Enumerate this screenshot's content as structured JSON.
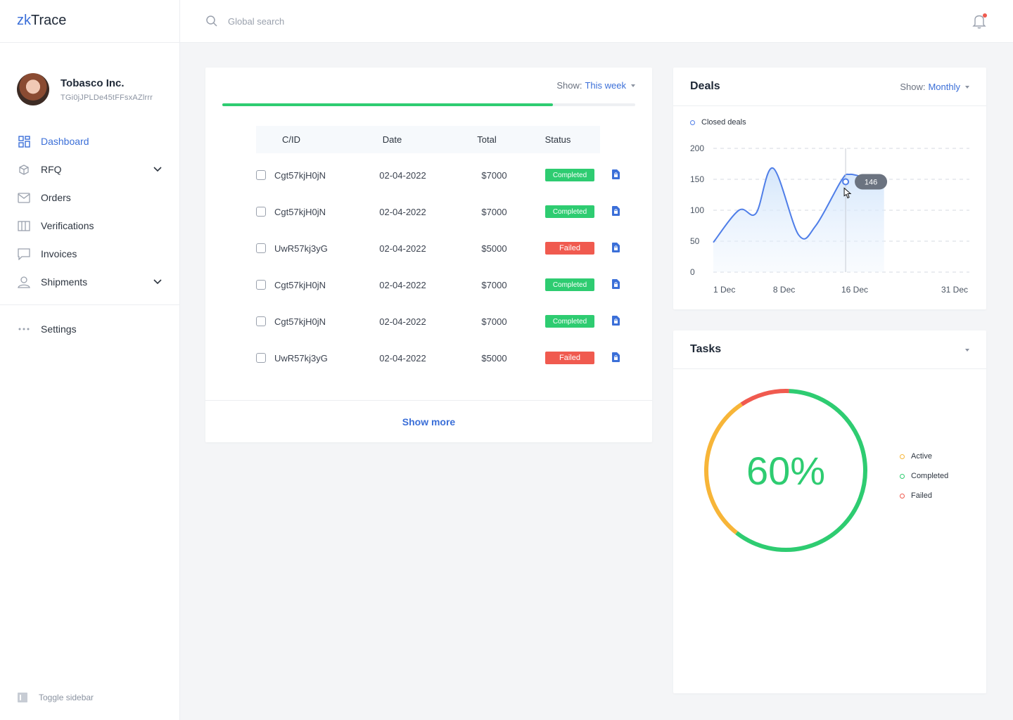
{
  "brand": {
    "prefix": "zk",
    "suffix": "Trace"
  },
  "profile": {
    "company": "Tobasco Inc.",
    "wallet": "TGi0jJPLDe45tFFsxAZlrrr"
  },
  "nav": {
    "items": [
      {
        "label": "Dashboard",
        "icon": "grid-icon",
        "active": true
      },
      {
        "label": "RFQ",
        "icon": "box-icon",
        "expandable": true
      },
      {
        "label": "Orders",
        "icon": "mail-icon"
      },
      {
        "label": "Verifications",
        "icon": "columns-icon"
      },
      {
        "label": "Invoices",
        "icon": "chat-icon"
      },
      {
        "label": "Shipments",
        "icon": "user-icon",
        "expandable": true
      }
    ],
    "settings": "Settings",
    "toggle": "Toggle sidebar"
  },
  "search": {
    "placeholder": "Global search"
  },
  "orders": {
    "filter_label": "Show:",
    "filter_value": "This week",
    "progress": 0.8,
    "columns": [
      "C/ID",
      "Date",
      "Total",
      "Status"
    ],
    "rows": [
      {
        "id": "Cgt57kjH0jN",
        "date": "02-04-2022",
        "total": "$7000",
        "status": "Completed"
      },
      {
        "id": "Cgt57kjH0jN",
        "date": "02-04-2022",
        "total": "$7000",
        "status": "Completed"
      },
      {
        "id": "UwR57kj3yG",
        "date": "02-04-2022",
        "total": "$5000",
        "status": "Failed"
      },
      {
        "id": "Cgt57kjH0jN",
        "date": "02-04-2022",
        "total": "$7000",
        "status": "Completed"
      },
      {
        "id": "Cgt57kjH0jN",
        "date": "02-04-2022",
        "total": "$7000",
        "status": "Completed"
      },
      {
        "id": "UwR57kj3yG",
        "date": "02-04-2022",
        "total": "$5000",
        "status": "Failed"
      }
    ],
    "show_more": "Show more"
  },
  "deals": {
    "title": "Deals",
    "filter_label": "Show:",
    "filter_value": "Monthly",
    "tooltip": "146"
  },
  "tasks": {
    "title": "Tasks",
    "center": "60%",
    "legend": [
      {
        "label": "Active",
        "color": "#f7b538"
      },
      {
        "label": "Completed",
        "color": "#2ecc71"
      },
      {
        "label": "Failed",
        "color": "#f05a4f"
      }
    ]
  },
  "chart_data": [
    {
      "type": "area",
      "series": [
        {
          "name": "Closed deals",
          "color": "#4f7ee8",
          "values": [
            [
              0,
              48
            ],
            [
              3,
              100
            ],
            [
              5,
              95
            ],
            [
              7,
              168
            ],
            [
              10,
              60
            ],
            [
              12,
              75
            ],
            [
              15,
              148
            ],
            [
              16,
              158
            ],
            [
              18,
              152
            ],
            [
              20,
              148
            ]
          ]
        }
      ],
      "x_ticks": [
        {
          "v": 0,
          "label": "1 Dec"
        },
        {
          "v": 7,
          "label": "8 Dec"
        },
        {
          "v": 15,
          "label": "16 Dec"
        },
        {
          "v": 30,
          "label": "31 Dec"
        }
      ],
      "xlim": [
        0,
        30
      ],
      "ylim": [
        0,
        200
      ],
      "yticks": [
        0,
        50,
        100,
        150,
        200
      ],
      "grid": true,
      "legend": "top-left",
      "highlight": {
        "x": 15.5,
        "y": 146
      }
    },
    {
      "type": "pie",
      "slices": [
        {
          "label": "Completed",
          "value": 60,
          "color": "#2ecc71"
        },
        {
          "label": "Active",
          "value": 30,
          "color": "#f7b538"
        },
        {
          "label": "Failed",
          "value": 10,
          "color": "#f05a4f"
        }
      ]
    }
  ]
}
